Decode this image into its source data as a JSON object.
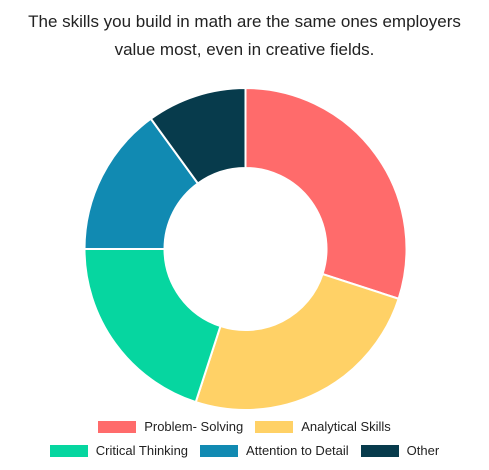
{
  "chart_data": {
    "type": "pie",
    "variant": "doughnut",
    "title": [
      "The skills you build in math are the same ones employers",
      "value most, even in creative fields."
    ],
    "categories": [
      "Problem- Solving",
      "Analytical Skills",
      "Critical Thinking",
      "Attention to Detail",
      "Other"
    ],
    "values": [
      30,
      25,
      20,
      15,
      10
    ],
    "colors": [
      "#ff6b6b",
      "#ffd166",
      "#06d6a0",
      "#118ab2",
      "#073b4c"
    ],
    "legend_position": "bottom"
  }
}
